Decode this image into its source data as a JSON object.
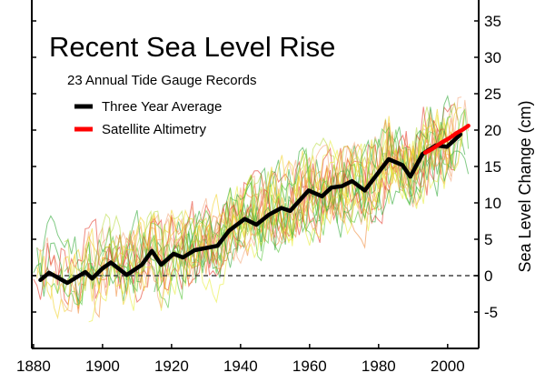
{
  "chart_data": {
    "type": "line",
    "title": "Recent Sea Level Rise",
    "subtitle": "23 Annual Tide Gauge Records",
    "xlabel": "",
    "ylabel": "Sea Level Change (cm)",
    "xlim": [
      1879.5,
      2009
    ],
    "ylim": [
      -10,
      35
    ],
    "x_ticks": [
      1880,
      1900,
      1920,
      1940,
      1960,
      1980,
      2000
    ],
    "y_ticks": [
      -5,
      0,
      5,
      10,
      15,
      20,
      25,
      30,
      35
    ],
    "y_axis_side": "right",
    "grid": false,
    "reference_line": {
      "y": 0,
      "style": "dashed"
    },
    "legend_placement": "top-left",
    "tide_gauge_colors": [
      "#e53b2c",
      "#f08a3a",
      "#f2d22a",
      "#e8ee3a",
      "#54c437",
      "#2fa836",
      "#f4a67a",
      "#b9dc45"
    ],
    "series": [
      {
        "name": "Three Year Average",
        "color": "#000000",
        "x": [
          1882,
          1884.5,
          1889.8,
          1895,
          1897,
          1900,
          1902.4,
          1907,
          1911.4,
          1914.3,
          1917,
          1920.6,
          1923.3,
          1926.7,
          1933.3,
          1936.7,
          1941.2,
          1944.6,
          1948.3,
          1951.8,
          1954.4,
          1959.7,
          1963.6,
          1966.3,
          1969.4,
          1972.3,
          1976,
          1980,
          1982.9,
          1986.9,
          1989.2,
          1992.7,
          1996.6,
          1999.8,
          2003.7
        ],
        "y": [
          -0.6,
          0.4,
          -1.0,
          0.5,
          -0.4,
          1.0,
          1.8,
          0.1,
          1.5,
          3.4,
          1.5,
          3.0,
          2.5,
          3.5,
          4.1,
          6.2,
          7.8,
          7.0,
          8.4,
          9.3,
          8.9,
          11.7,
          10.9,
          12.1,
          12.3,
          13.0,
          11.7,
          14.2,
          16.0,
          15.2,
          13.6,
          16.7,
          17.9,
          17.7,
          19.4
        ]
      },
      {
        "name": "Satellite Altimetry",
        "color": "#ff0000",
        "x": [
          1993.5,
          1995.5,
          1998.3,
          2000.5,
          2002.6,
          2004.5,
          2006
        ],
        "y": [
          16.9,
          17.4,
          18.3,
          18.9,
          19.6,
          20.1,
          20.6
        ]
      }
    ]
  }
}
